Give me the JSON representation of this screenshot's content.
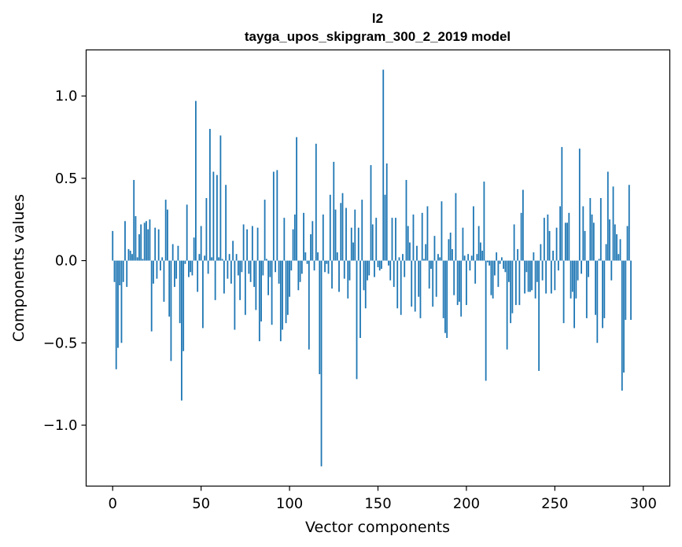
{
  "chart_data": {
    "type": "bar",
    "title": "l2",
    "subtitle": "tayga_upos_skipgram_300_2_2019 model",
    "xlabel": "Vector components",
    "ylabel": "Components values",
    "xlim": [
      -15,
      315
    ],
    "ylim": [
      -1.37,
      1.28
    ],
    "xticks": [
      0,
      50,
      100,
      150,
      200,
      250,
      300
    ],
    "xtick_labels": [
      "0",
      "50",
      "100",
      "150",
      "200",
      "250",
      "300"
    ],
    "yticks": [
      -1.0,
      -0.5,
      0.0,
      0.5,
      1.0
    ],
    "ytick_labels": [
      "−1.0",
      "−0.5",
      "0.0",
      "0.5",
      "1.0"
    ],
    "color": "#1f77b4",
    "bar_width": 0.8,
    "values": [
      0.18,
      -0.13,
      -0.66,
      -0.53,
      -0.15,
      -0.5,
      -0.13,
      0.24,
      -0.16,
      0.07,
      0.06,
      0.04,
      0.49,
      0.27,
      0.02,
      0.16,
      0.22,
      0.01,
      0.23,
      0.24,
      0.19,
      0.25,
      -0.43,
      -0.14,
      0.2,
      -0.11,
      0.19,
      -0.06,
      0.02,
      -0.25,
      0.37,
      0.31,
      -0.34,
      -0.61,
      0.1,
      -0.16,
      -0.11,
      0.09,
      -0.38,
      -0.85,
      -0.55,
      -0.02,
      0.34,
      -0.1,
      -0.07,
      -0.09,
      0.14,
      0.97,
      -0.19,
      0.04,
      0.21,
      -0.41,
      0.03,
      0.38,
      -0.08,
      0.8,
      0.02,
      0.54,
      -0.24,
      0.52,
      0.02,
      0.76,
      0.01,
      -0.2,
      0.46,
      -0.11,
      0.04,
      -0.14,
      0.12,
      -0.42,
      0.04,
      -0.09,
      -0.24,
      -0.07,
      0.22,
      -0.33,
      0.19,
      -0.08,
      -0.13,
      0.21,
      -0.16,
      -0.3,
      0.2,
      -0.49,
      -0.37,
      -0.09,
      0.37,
      0.01,
      -0.21,
      -0.1,
      -0.39,
      0.54,
      -0.07,
      0.55,
      -0.14,
      -0.49,
      -0.42,
      0.26,
      -0.38,
      -0.33,
      -0.22,
      -0.06,
      0.19,
      0.28,
      0.75,
      -0.18,
      -0.13,
      -0.08,
      0.29,
      0.05,
      -0.02,
      -0.54,
      0.16,
      0.24,
      -0.06,
      0.71,
      0.05,
      -0.69,
      -1.25,
      0.28,
      -0.07,
      -0.02,
      -0.08,
      0.4,
      -0.17,
      0.6,
      0.31,
      0.05,
      -0.19,
      0.35,
      0.41,
      -0.11,
      0.32,
      -0.23,
      -0.12,
      0.2,
      0.11,
      0.31,
      -0.72,
      0.2,
      -0.47,
      0.37,
      -0.18,
      -0.29,
      -0.12,
      -0.09,
      0.58,
      0.22,
      -0.1,
      0.26,
      -0.04,
      -0.06,
      -0.05,
      1.16,
      0.4,
      0.59,
      -0.03,
      -0.12,
      0.26,
      -0.16,
      0.26,
      -0.29,
      0.02,
      -0.33,
      0.04,
      -0.1,
      0.49,
      0.21,
      0.11,
      -0.28,
      0.28,
      -0.31,
      0.09,
      -0.22,
      -0.35,
      0.29,
      0.01,
      0.1,
      0.33,
      -0.17,
      -0.05,
      -0.28,
      0.15,
      -0.22,
      0.04,
      0.02,
      0.36,
      -0.35,
      -0.44,
      -0.47,
      0.13,
      0.17,
      0.07,
      -0.21,
      0.41,
      -0.27,
      -0.25,
      -0.34,
      0.2,
      0.03,
      -0.27,
      0.04,
      -0.06,
      0.03,
      0.33,
      -0.14,
      0.04,
      0.21,
      0.11,
      0.06,
      0.48,
      -0.73,
      -0.01,
      -0.03,
      -0.21,
      -0.23,
      -0.09,
      0.05,
      -0.16,
      -0.02,
      0.02,
      -0.05,
      -0.07,
      -0.54,
      -0.13,
      -0.38,
      -0.32,
      0.22,
      -0.27,
      0.07,
      -0.27,
      0.29,
      0.43,
      -0.2,
      -0.07,
      -0.19,
      -0.19,
      -0.18,
      0.05,
      -0.23,
      -0.13,
      -0.67,
      0.1,
      -0.12,
      0.26,
      -0.2,
      0.28,
      0.18,
      -0.2,
      0.06,
      -0.18,
      0.2,
      -0.06,
      0.33,
      0.69,
      -0.38,
      0.23,
      0.23,
      0.29,
      -0.23,
      -0.19,
      -0.41,
      -0.23,
      -0.12,
      0.68,
      -0.08,
      0.33,
      0.18,
      -0.35,
      -0.1,
      0.38,
      0.28,
      0.23,
      -0.33,
      -0.5,
      0.01,
      0.38,
      -0.41,
      -0.35,
      0.1,
      0.54,
      0.25,
      -0.12,
      0.45,
      0.22,
      0.16,
      0.04,
      0.13,
      -0.79,
      -0.68,
      -0.36,
      0.21,
      0.46,
      -0.36
    ]
  }
}
